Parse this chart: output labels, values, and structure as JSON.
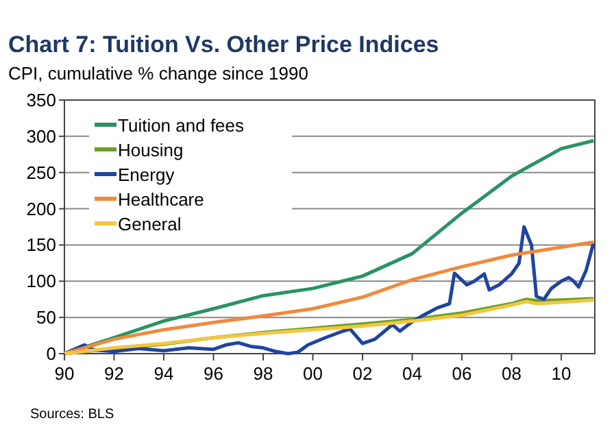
{
  "chart_data": {
    "type": "line",
    "title": "Chart 7: Tuition Vs. Other Price Indices",
    "subtitle": "CPI, cumulative % change since 1990",
    "annotations": [
      "Sources: BLS"
    ],
    "xlim": [
      1990,
      2011.35
    ],
    "xticks": [
      {
        "value": 1990,
        "label": "90"
      },
      {
        "value": 1992,
        "label": "92"
      },
      {
        "value": 1994,
        "label": "94"
      },
      {
        "value": 1996,
        "label": "96"
      },
      {
        "value": 1998,
        "label": "98"
      },
      {
        "value": 2000,
        "label": "00"
      },
      {
        "value": 2002,
        "label": "02"
      },
      {
        "value": 2004,
        "label": "04"
      },
      {
        "value": 2006,
        "label": "06"
      },
      {
        "value": 2008,
        "label": "08"
      },
      {
        "value": 2010,
        "label": "10"
      }
    ],
    "ylim": [
      0,
      350
    ],
    "yticks": [
      0,
      50,
      100,
      150,
      200,
      250,
      300,
      350
    ],
    "grid": "y",
    "legend": "top left",
    "line_style": "solid",
    "series": [
      {
        "name": "Tuition and fees",
        "color": "#2a9363",
        "x": [
          1990,
          1992,
          1994,
          1996,
          1998,
          2000,
          2002,
          2004,
          2006,
          2008,
          2010,
          2011.3
        ],
        "values": [
          0,
          22,
          45,
          62,
          80,
          90,
          107,
          138,
          194,
          245,
          283,
          294
        ]
      },
      {
        "name": "Housing",
        "color": "#6aa121",
        "x": [
          1990,
          1992,
          1994,
          1996,
          1998,
          2000,
          2002,
          2004,
          2006,
          2008,
          2008.6,
          2009,
          2010,
          2011.3
        ],
        "values": [
          0,
          7,
          13,
          22,
          29,
          35,
          41,
          47,
          56,
          69,
          75,
          73,
          74,
          76
        ]
      },
      {
        "name": "Energy",
        "color": "#1f44a0",
        "x": [
          1990,
          1990.8,
          1991.2,
          1992,
          1993,
          1994,
          1995,
          1996,
          1996.5,
          1997,
          1997.5,
          1998,
          1998.5,
          1999,
          1999.4,
          1999.8,
          2000.5,
          2001.2,
          2001.5,
          2002,
          2002.5,
          2003.2,
          2003.5,
          2004,
          2004.5,
          2005,
          2005.5,
          2005.7,
          2006.2,
          2006.5,
          2006.9,
          2007.1,
          2007.5,
          2008,
          2008.3,
          2008.5,
          2008.8,
          2009,
          2009.3,
          2009.6,
          2010,
          2010.3,
          2010.5,
          2010.7,
          2011,
          2011.3
        ],
        "values": [
          0,
          12,
          5,
          3,
          7,
          4,
          8,
          6,
          12,
          15,
          10,
          8,
          3,
          0,
          2,
          12,
          22,
          31,
          34,
          14,
          20,
          40,
          31,
          44,
          54,
          63,
          69,
          111,
          95,
          100,
          110,
          88,
          95,
          110,
          125,
          175,
          150,
          79,
          75,
          90,
          100,
          105,
          100,
          92,
          115,
          153
        ]
      },
      {
        "name": "Healthcare",
        "color": "#f08a3c",
        "x": [
          1990,
          1992,
          1994,
          1996,
          1998,
          2000,
          2002,
          2004,
          2006,
          2008,
          2011.3
        ],
        "values": [
          0,
          20,
          33,
          43,
          52,
          62,
          78,
          102,
          120,
          136,
          154
        ]
      },
      {
        "name": "General",
        "color": "#f5c542",
        "x": [
          1990,
          1992,
          1994,
          1996,
          1998,
          2000,
          2002,
          2004,
          2006,
          2008,
          2008.6,
          2009,
          2010,
          2011.3
        ],
        "values": [
          0,
          8,
          14,
          22,
          28,
          33,
          38,
          45,
          53,
          67,
          72,
          69,
          71,
          74
        ]
      }
    ]
  }
}
